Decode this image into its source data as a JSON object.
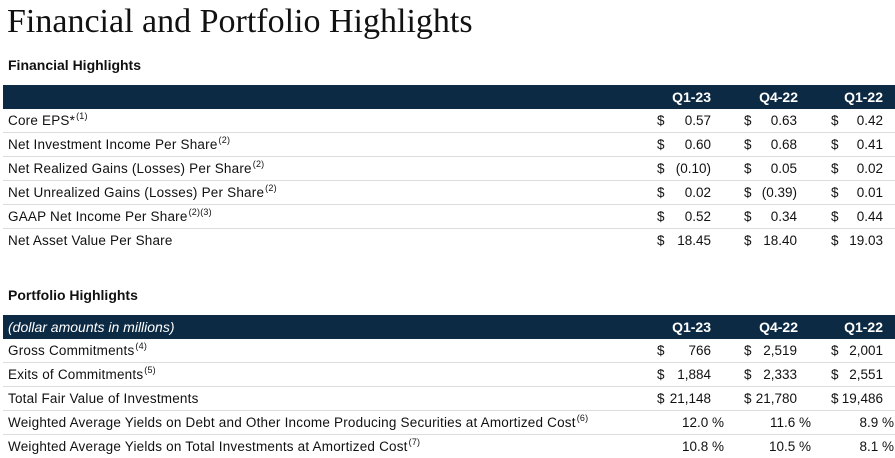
{
  "title": "Financial and Portfolio Highlights",
  "financial": {
    "section_title": "Financial Highlights",
    "header_label": "",
    "columns": [
      "Q1-23",
      "Q4-22",
      "Q1-22"
    ],
    "rows": [
      {
        "label": "Core EPS*",
        "note": "(1)",
        "values": [
          {
            "cur": "$",
            "val": "0.57"
          },
          {
            "cur": "$",
            "val": "0.63"
          },
          {
            "cur": "$",
            "val": "0.42"
          }
        ]
      },
      {
        "label": "Net Investment Income Per Share",
        "note": "(2)",
        "values": [
          {
            "cur": "$",
            "val": "0.60"
          },
          {
            "cur": "$",
            "val": "0.68"
          },
          {
            "cur": "$",
            "val": "0.41"
          }
        ]
      },
      {
        "label": "Net Realized Gains (Losses) Per Share",
        "note": "(2)",
        "values": [
          {
            "cur": "$",
            "val": "(0.10)"
          },
          {
            "cur": "$",
            "val": "0.05"
          },
          {
            "cur": "$",
            "val": "0.02"
          }
        ]
      },
      {
        "label": "Net Unrealized Gains (Losses) Per Share",
        "note": "(2)",
        "values": [
          {
            "cur": "$",
            "val": "0.02"
          },
          {
            "cur": "$",
            "val": "(0.39)"
          },
          {
            "cur": "$",
            "val": "0.01"
          }
        ]
      },
      {
        "label": "GAAP Net Income Per Share",
        "note": "(2)(3)",
        "values": [
          {
            "cur": "$",
            "val": "0.52"
          },
          {
            "cur": "$",
            "val": "0.34"
          },
          {
            "cur": "$",
            "val": "0.44"
          }
        ]
      },
      {
        "label": "Net Asset Value Per Share",
        "note": "",
        "values": [
          {
            "cur": "$",
            "val": "18.45"
          },
          {
            "cur": "$",
            "val": "18.40"
          },
          {
            "cur": "$",
            "val": "19.03"
          }
        ]
      }
    ]
  },
  "portfolio": {
    "section_title": "Portfolio Highlights",
    "header_label": "(dollar amounts in millions)",
    "columns": [
      "Q1-23",
      "Q4-22",
      "Q1-22"
    ],
    "rows": [
      {
        "label": "Gross Commitments",
        "note": "(4)",
        "values": [
          {
            "cur": "$",
            "val": "766"
          },
          {
            "cur": "$",
            "val": "2,519"
          },
          {
            "cur": "$",
            "val": "2,001"
          }
        ]
      },
      {
        "label": "Exits of Commitments",
        "note": "(5)",
        "values": [
          {
            "cur": "$",
            "val": "1,884"
          },
          {
            "cur": "$",
            "val": "2,333"
          },
          {
            "cur": "$",
            "val": "2,551"
          }
        ]
      },
      {
        "label": "Total Fair Value of Investments",
        "note": "",
        "values": [
          {
            "cur": "$",
            "val": "21,148"
          },
          {
            "cur": "$",
            "val": "21,780"
          },
          {
            "cur": "$",
            "val": "19,486"
          }
        ]
      },
      {
        "label": "Weighted Average Yields on Debt and Other Income Producing Securities at Amortized Cost",
        "note": "(6)",
        "values": [
          {
            "cur": "",
            "val": "12.0 %"
          },
          {
            "cur": "",
            "val": "11.6 %"
          },
          {
            "cur": "",
            "val": "8.9 %"
          }
        ]
      },
      {
        "label": "Weighted Average Yields on Total Investments at Amortized Cost",
        "note": "(7)",
        "values": [
          {
            "cur": "",
            "val": "10.8 %"
          },
          {
            "cur": "",
            "val": "10.5 %"
          },
          {
            "cur": "",
            "val": "8.1 %"
          }
        ]
      }
    ]
  }
}
